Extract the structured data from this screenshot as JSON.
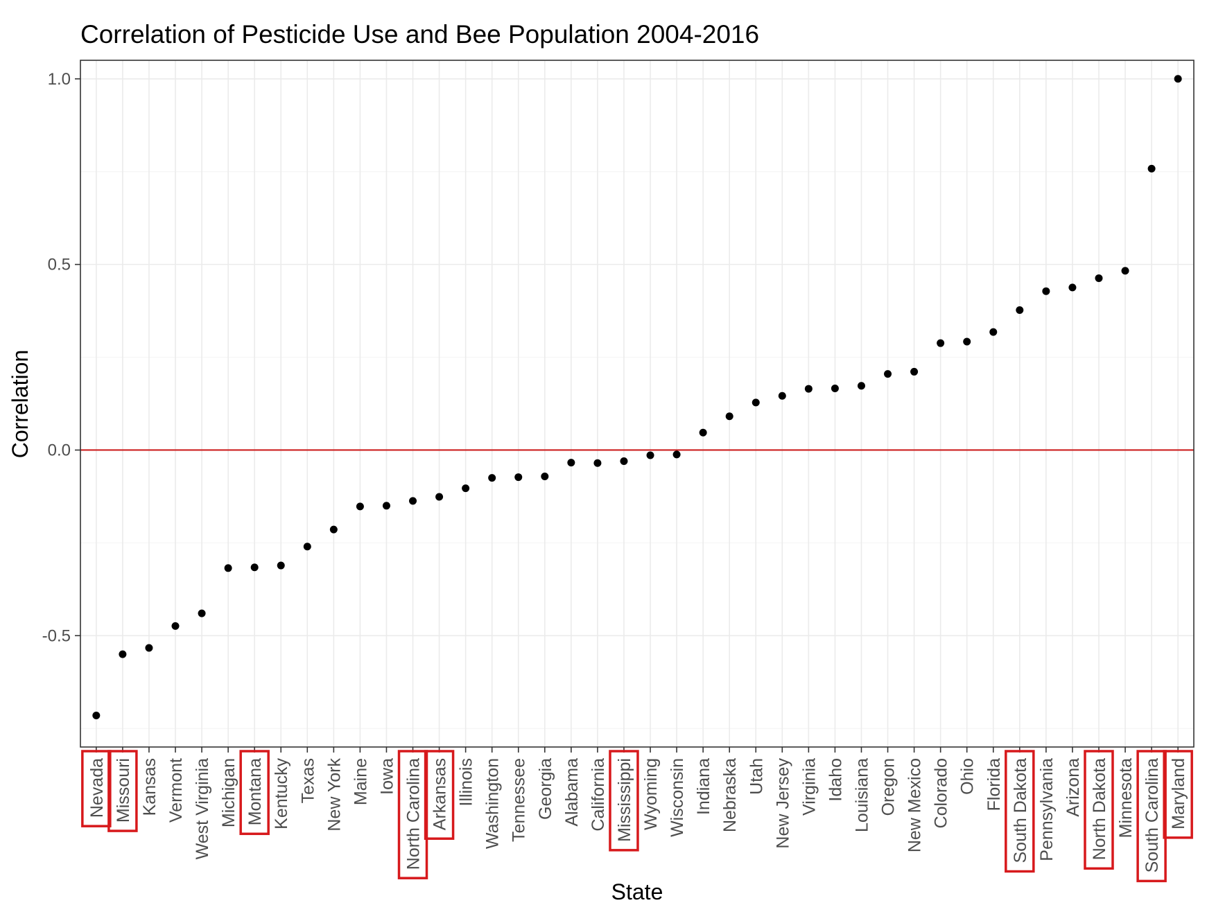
{
  "chart_data": {
    "type": "scatter",
    "title": "Correlation of Pesticide Use and Bee Population 2004-2016",
    "xlabel": "State",
    "ylabel": "Correlation",
    "ylim": [
      -0.8,
      1.05
    ],
    "yticks": [
      -0.5,
      0.0,
      0.5,
      1.0
    ],
    "ytick_labels": [
      "-0.5",
      "0.0",
      "0.5",
      "1.0"
    ],
    "grid": true,
    "reference_line": {
      "y": 0.0,
      "color": "#cc1f1f"
    },
    "highlight_color": "#d7191c",
    "categories": [
      "Nevada",
      "Missouri",
      "Kansas",
      "Vermont",
      "West Virginia",
      "Michigan",
      "Montana",
      "Kentucky",
      "Texas",
      "New York",
      "Maine",
      "Iowa",
      "North Carolina",
      "Arkansas",
      "Illinois",
      "Washington",
      "Tennessee",
      "Georgia",
      "Alabama",
      "California",
      "Mississippi",
      "Wyoming",
      "Wisconsin",
      "Indiana",
      "Nebraska",
      "Utah",
      "New Jersey",
      "Virginia",
      "Idaho",
      "Louisiana",
      "Oregon",
      "New Mexico",
      "Colorado",
      "Ohio",
      "Florida",
      "South Dakota",
      "Pennsylvania",
      "Arizona",
      "North Dakota",
      "Minnesota",
      "South Carolina",
      "Maryland"
    ],
    "values": [
      -0.715,
      -0.55,
      -0.533,
      -0.474,
      -0.44,
      -0.318,
      -0.316,
      -0.311,
      -0.26,
      -0.214,
      -0.152,
      -0.15,
      -0.137,
      -0.126,
      -0.103,
      -0.075,
      -0.073,
      -0.071,
      -0.034,
      -0.035,
      -0.03,
      -0.014,
      -0.012,
      0.047,
      0.091,
      0.128,
      0.146,
      0.165,
      0.166,
      0.173,
      0.205,
      0.211,
      0.288,
      0.292,
      0.318,
      0.377,
      0.428,
      0.438,
      0.463,
      0.483,
      0.758,
      1.0
    ],
    "highlighted": [
      "Nevada",
      "Missouri",
      "Montana",
      "North Carolina",
      "Arkansas",
      "Mississippi",
      "South Dakota",
      "North Dakota",
      "South Carolina",
      "Maryland"
    ]
  }
}
